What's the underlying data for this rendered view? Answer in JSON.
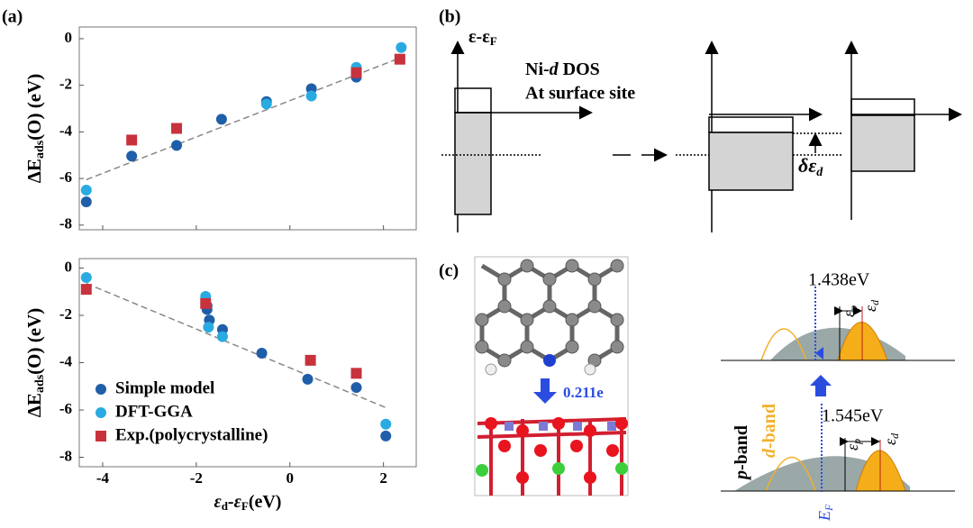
{
  "chart_data": [
    {
      "type": "scatter",
      "panel_label": "(a)",
      "ylabel": [
        "ΔE",
        "ads",
        "(O) (eV)"
      ],
      "xlim": [
        -4.5,
        2.7
      ],
      "ylim": [
        -8.2,
        0.5
      ],
      "xticks": [
        -4,
        -2,
        0,
        2
      ],
      "yticks": [
        0,
        -2,
        -4,
        -6,
        -8
      ],
      "xtick_labels": false,
      "legend": false,
      "fit": {
        "x": [
          -4.35,
          2.45
        ],
        "y": [
          -6.05,
          -0.75
        ]
      },
      "series": [
        {
          "color": "#1f5ea8",
          "marker": "circle",
          "x": [
            -4.35,
            -3.38,
            -2.42,
            -1.46,
            -0.5,
            0.46,
            1.42,
            1.42
          ],
          "y": [
            -7.0,
            -5.04,
            -4.58,
            -3.46,
            -2.7,
            -2.15,
            -1.65,
            -1.45
          ]
        },
        {
          "color": "#29abe2",
          "marker": "circle",
          "x": [
            -4.35,
            -0.5,
            0.46,
            1.42,
            2.38
          ],
          "y": [
            -6.5,
            -2.8,
            -2.46,
            -1.23,
            -0.38
          ]
        },
        {
          "color": "#c8323c",
          "marker": "square",
          "x": [
            -3.38,
            -2.42,
            1.42,
            2.35
          ],
          "y": [
            -4.35,
            -3.85,
            -1.46,
            -0.88
          ]
        }
      ]
    },
    {
      "type": "scatter",
      "ylabel": [
        "ΔE",
        "ads",
        "(O) (eV)"
      ],
      "xlabel": [
        "ε",
        "d",
        "-ε",
        "F",
        "(eV)"
      ],
      "xlim": [
        -4.5,
        2.7
      ],
      "ylim": [
        -8.4,
        0.4
      ],
      "xticks": [
        -4,
        -2,
        0,
        2
      ],
      "yticks": [
        0,
        -2,
        -4,
        -6,
        -8
      ],
      "xtick_labels": true,
      "legend": "lower left",
      "fit": {
        "x": [
          -4.35,
          2.05
        ],
        "y": [
          -0.65,
          -5.9
        ]
      },
      "series": [
        {
          "name": "Simple model",
          "color": "#1f5ea8",
          "marker": "circle",
          "x": [
            -1.77,
            -1.77,
            -1.72,
            -1.44,
            -0.6,
            0.38,
            1.42,
            2.05
          ],
          "y": [
            -1.6,
            -1.75,
            -2.2,
            -2.6,
            -3.6,
            -4.7,
            -5.05,
            -7.1
          ]
        },
        {
          "name": "DFT-GGA",
          "color": "#29abe2",
          "marker": "circle",
          "x": [
            -4.35,
            -1.8,
            -1.74,
            -1.44,
            2.05
          ],
          "y": [
            -0.4,
            -1.2,
            -2.5,
            -2.9,
            -6.6
          ]
        },
        {
          "name": "Exp.(polycrystalline)",
          "color": "#c8323c",
          "marker": "square",
          "x": [
            -4.35,
            -1.8,
            0.44,
            1.42
          ],
          "y": [
            -0.9,
            -1.5,
            -3.9,
            -4.45
          ]
        }
      ]
    }
  ],
  "panel_b": {
    "label": "(b)",
    "axis_label": [
      "ε-ε",
      "F"
    ],
    "dos_label": [
      "Ni-",
      "d",
      " DOS"
    ],
    "site_label": "At surface site",
    "shift_label": [
      "δε",
      "d"
    ]
  },
  "panel_c": {
    "label": "(c)",
    "charge": "0.211e",
    "gap_top": "1.438eV",
    "gap_bottom": "1.545eV",
    "eps_p": [
      "ε",
      "p"
    ],
    "eps_d": [
      "ε",
      "d"
    ],
    "p_band": [
      "p",
      "-band"
    ],
    "d_band": [
      "d",
      "-band"
    ],
    "fermi": [
      "E",
      "F"
    ]
  }
}
